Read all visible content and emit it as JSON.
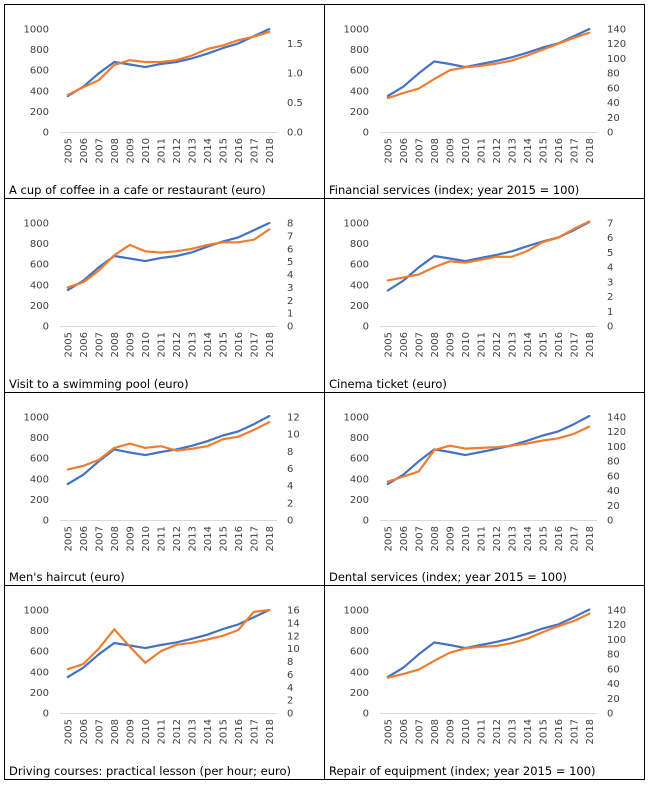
{
  "colors": {
    "blue": "#4472C4",
    "orange": "#ED7D31"
  },
  "chart_data": [
    {
      "type": "line",
      "title": "A cup of coffee in a cafe or restaurant (euro)",
      "x": [
        "2005",
        "2006",
        "2007",
        "2008",
        "2009",
        "2010",
        "2011",
        "2012",
        "2013",
        "2014",
        "2015",
        "2016",
        "2017",
        "2018"
      ],
      "ylim_left": [
        0,
        1000
      ],
      "left_ticks": [
        "0",
        "200",
        "400",
        "600",
        "800",
        "1000"
      ],
      "ylim_right": [
        0,
        1.75
      ],
      "right_ticks": [
        "0.0",
        "0.5",
        "1.0",
        "1.5"
      ],
      "series": [
        {
          "axis": "left",
          "color": "blue",
          "values": [
            350,
            440,
            570,
            680,
            655,
            630,
            660,
            680,
            715,
            760,
            815,
            860,
            930,
            1000
          ]
        },
        {
          "axis": "right",
          "color": "orange",
          "values": [
            0.63,
            0.76,
            0.88,
            1.14,
            1.22,
            1.19,
            1.19,
            1.22,
            1.3,
            1.41,
            1.47,
            1.56,
            1.62,
            1.7
          ]
        }
      ]
    },
    {
      "type": "line",
      "title": "Financial services (index; year 2015 = 100)",
      "x": [
        "2005",
        "2006",
        "2007",
        "2008",
        "2009",
        "2010",
        "2011",
        "2012",
        "2013",
        "2014",
        "2015",
        "2016",
        "2017",
        "2018"
      ],
      "ylim_left": [
        0,
        1000
      ],
      "left_ticks": [
        "0",
        "200",
        "400",
        "600",
        "800",
        "1000"
      ],
      "ylim_right": [
        0,
        140
      ],
      "right_ticks": [
        "0",
        "20",
        "40",
        "60",
        "80",
        "100",
        "120",
        "140"
      ],
      "series": [
        {
          "axis": "left",
          "color": "blue",
          "values": [
            350,
            440,
            570,
            685,
            660,
            630,
            660,
            690,
            725,
            770,
            820,
            860,
            930,
            1000
          ]
        },
        {
          "axis": "right",
          "color": "orange",
          "values": [
            46,
            53,
            59,
            72,
            84,
            88,
            90,
            93,
            97,
            104,
            112,
            120,
            128,
            135
          ]
        }
      ]
    },
    {
      "type": "line",
      "title": "Visit to a swimming pool (euro)",
      "x": [
        "2005",
        "2006",
        "2007",
        "2008",
        "2009",
        "2010",
        "2011",
        "2012",
        "2013",
        "2014",
        "2015",
        "2016",
        "2017",
        "2018"
      ],
      "ylim_left": [
        0,
        1000
      ],
      "left_ticks": [
        "0",
        "200",
        "400",
        "600",
        "800",
        "1000"
      ],
      "ylim_right": [
        0,
        8
      ],
      "right_ticks": [
        "0",
        "1",
        "2",
        "3",
        "4",
        "5",
        "6",
        "7",
        "8"
      ],
      "series": [
        {
          "axis": "left",
          "color": "blue",
          "values": [
            350,
            440,
            570,
            680,
            655,
            630,
            660,
            680,
            715,
            770,
            820,
            860,
            930,
            1000
          ]
        },
        {
          "axis": "right",
          "color": "orange",
          "values": [
            3.0,
            3.4,
            4.3,
            5.5,
            6.3,
            5.8,
            5.7,
            5.8,
            6.0,
            6.3,
            6.5,
            6.5,
            6.7,
            7.5
          ]
        }
      ]
    },
    {
      "type": "line",
      "title": "Cinema ticket (euro)",
      "x": [
        "2005",
        "2006",
        "2007",
        "2008",
        "2009",
        "2010",
        "2011",
        "2012",
        "2013",
        "2014",
        "2015",
        "2016",
        "2017",
        "2018"
      ],
      "ylim_left": [
        0,
        1000
      ],
      "left_ticks": [
        "0",
        "200",
        "400",
        "600",
        "800",
        "1000"
      ],
      "ylim_right": [
        0,
        7
      ],
      "right_ticks": [
        "0",
        "1",
        "2",
        "3",
        "4",
        "5",
        "6",
        "7"
      ],
      "series": [
        {
          "axis": "left",
          "color": "blue",
          "values": [
            345,
            440,
            570,
            680,
            655,
            630,
            660,
            690,
            725,
            775,
            820,
            860,
            930,
            1010
          ]
        },
        {
          "axis": "right",
          "color": "orange",
          "values": [
            3.1,
            3.3,
            3.5,
            4.0,
            4.4,
            4.3,
            4.5,
            4.7,
            4.7,
            5.1,
            5.7,
            6.0,
            6.6,
            7.1
          ]
        }
      ]
    },
    {
      "type": "line",
      "title": "Men's haircut (euro)",
      "x": [
        "2005",
        "2006",
        "2007",
        "2008",
        "2009",
        "2010",
        "2011",
        "2012",
        "2013",
        "2014",
        "2015",
        "2016",
        "2017",
        "2018"
      ],
      "ylim_left": [
        0,
        1000
      ],
      "left_ticks": [
        "0",
        "200",
        "400",
        "600",
        "800",
        "1000"
      ],
      "ylim_right": [
        0,
        12
      ],
      "right_ticks": [
        "0",
        "2",
        "4",
        "6",
        "8",
        "10",
        "12"
      ],
      "series": [
        {
          "axis": "left",
          "color": "blue",
          "values": [
            350,
            440,
            570,
            685,
            655,
            630,
            660,
            685,
            720,
            765,
            820,
            860,
            930,
            1010
          ]
        },
        {
          "axis": "right",
          "color": "orange",
          "values": [
            5.9,
            6.3,
            7.0,
            8.4,
            8.9,
            8.4,
            8.6,
            8.1,
            8.3,
            8.6,
            9.4,
            9.7,
            10.5,
            11.4
          ]
        }
      ]
    },
    {
      "type": "line",
      "title": "Dental services (index; year 2015 = 100)",
      "x": [
        "2005",
        "2006",
        "2007",
        "2008",
        "2009",
        "2010",
        "2011",
        "2012",
        "2013",
        "2014",
        "2015",
        "2016",
        "2017",
        "2018"
      ],
      "ylim_left": [
        0,
        1000
      ],
      "left_ticks": [
        "0",
        "200",
        "400",
        "600",
        "800",
        "1000"
      ],
      "ylim_right": [
        0,
        140
      ],
      "right_ticks": [
        "0",
        "20",
        "40",
        "60",
        "80",
        "100",
        "120",
        "140"
      ],
      "series": [
        {
          "axis": "left",
          "color": "blue",
          "values": [
            350,
            440,
            570,
            685,
            660,
            630,
            660,
            690,
            725,
            770,
            820,
            860,
            930,
            1010
          ]
        },
        {
          "axis": "right",
          "color": "orange",
          "values": [
            52,
            59,
            66,
            95,
            101,
            97,
            98,
            99,
            101,
            104,
            108,
            111,
            117,
            127
          ]
        }
      ]
    },
    {
      "type": "line",
      "title": "Driving courses: practical lesson (per hour; euro)",
      "x": [
        "2005",
        "2006",
        "2007",
        "2008",
        "2009",
        "2010",
        "2011",
        "2012",
        "2013",
        "2014",
        "2015",
        "2016",
        "2017",
        "2018"
      ],
      "ylim_left": [
        0,
        1000
      ],
      "left_ticks": [
        "0",
        "200",
        "400",
        "600",
        "800",
        "1000"
      ],
      "ylim_right": [
        0,
        16
      ],
      "right_ticks": [
        "0",
        "2",
        "4",
        "6",
        "8",
        "10",
        "12",
        "14",
        "16"
      ],
      "series": [
        {
          "axis": "left",
          "color": "blue",
          "values": [
            350,
            440,
            570,
            680,
            655,
            630,
            660,
            685,
            720,
            760,
            815,
            860,
            930,
            1000
          ]
        },
        {
          "axis": "right",
          "color": "orange",
          "values": [
            6.8,
            7.6,
            10.0,
            13.0,
            10.3,
            7.8,
            9.6,
            10.6,
            10.9,
            11.4,
            12.0,
            12.9,
            15.7,
            16.0
          ]
        }
      ]
    },
    {
      "type": "line",
      "title": "Repair of equipment (index; year 2015 = 100)",
      "x": [
        "2005",
        "2006",
        "2007",
        "2008",
        "2009",
        "2010",
        "2011",
        "2012",
        "2013",
        "2014",
        "2015",
        "2016",
        "2017",
        "2018"
      ],
      "ylim_left": [
        0,
        1000
      ],
      "left_ticks": [
        "0",
        "200",
        "400",
        "600",
        "800",
        "1000"
      ],
      "ylim_right": [
        0,
        140
      ],
      "right_ticks": [
        "0",
        "20",
        "40",
        "60",
        "80",
        "100",
        "120",
        "140"
      ],
      "series": [
        {
          "axis": "left",
          "color": "blue",
          "values": [
            350,
            440,
            570,
            685,
            660,
            630,
            660,
            690,
            725,
            770,
            820,
            860,
            930,
            1005
          ]
        },
        {
          "axis": "right",
          "color": "orange",
          "values": [
            48,
            53,
            59,
            71,
            82,
            88,
            90,
            91,
            95,
            101,
            110,
            118,
            125,
            135
          ]
        }
      ]
    }
  ]
}
